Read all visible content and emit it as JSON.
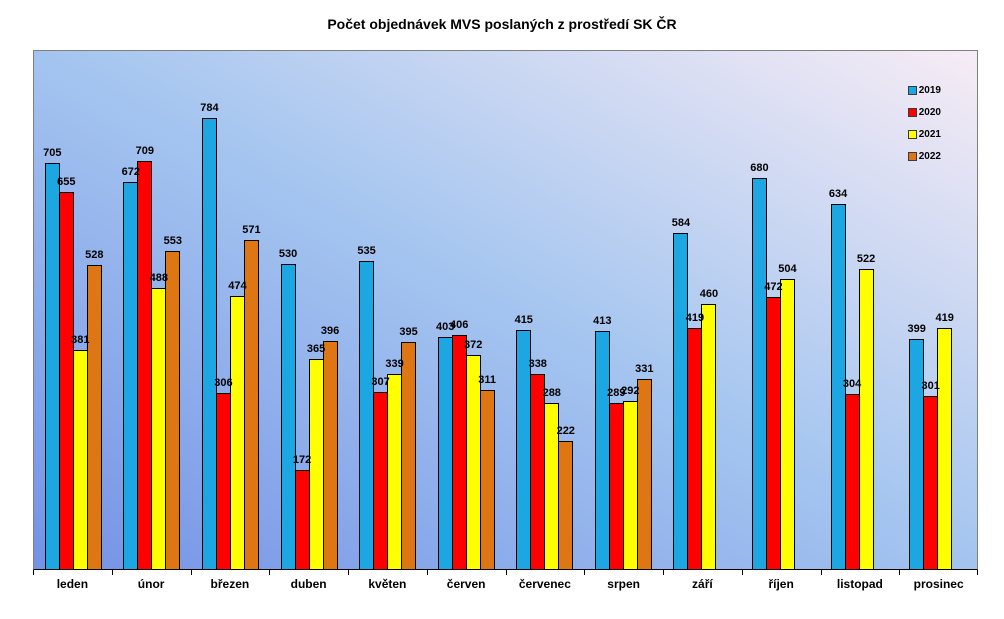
{
  "title": "Počet objednávek MVS poslaných z prostředí SK ČR",
  "colors": {
    "plot_gradient_bottom_left": "#7492e6",
    "plot_gradient_middle": "#a6c6f0",
    "plot_gradient_top_right": "#f7ecf5",
    "bar_border": "#000000",
    "axis_line": "#000000",
    "plot_border": "#7f7f7f",
    "label_text": "#000000"
  },
  "chart_data": {
    "type": "bar",
    "title": "Počet objednávek MVS poslaných z prostředí SK ČR",
    "xlabel": "",
    "ylabel": "",
    "ylim": [
      0,
      900
    ],
    "grid": false,
    "data_labels": true,
    "legend_position": "top-right",
    "categories": [
      "leden",
      "únor",
      "březen",
      "duben",
      "květen",
      "červen",
      "červenec",
      "srpen",
      "září",
      "říjen",
      "listopad",
      "prosinec"
    ],
    "series": [
      {
        "name": "2019",
        "color": "#1ca6e2",
        "values": [
          705,
          672,
          784,
          530,
          535,
          403,
          415,
          413,
          584,
          680,
          634,
          399
        ]
      },
      {
        "name": "2020",
        "color": "#ff0000",
        "values": [
          655,
          709,
          306,
          172,
          307,
          406,
          338,
          289,
          419,
          472,
          304,
          301
        ]
      },
      {
        "name": "2021",
        "color": "#ffff00",
        "values": [
          381,
          488,
          474,
          365,
          339,
          372,
          288,
          292,
          460,
          504,
          522,
          419
        ]
      },
      {
        "name": "2022",
        "color": "#de7613",
        "values": [
          528,
          553,
          571,
          396,
          395,
          311,
          222,
          331,
          null,
          null,
          null,
          null
        ]
      }
    ]
  }
}
